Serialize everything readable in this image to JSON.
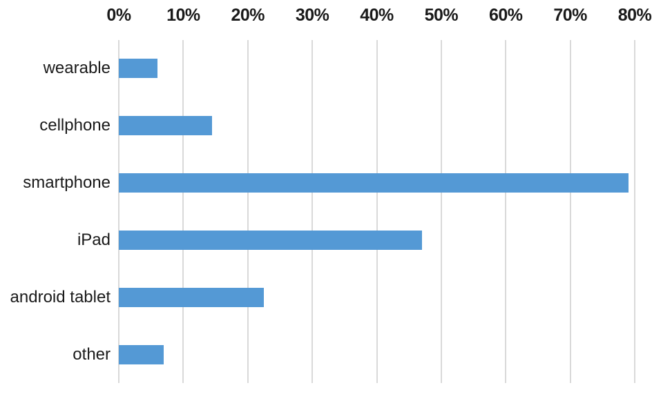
{
  "chart_data": {
    "type": "bar",
    "orientation": "horizontal",
    "title": "",
    "categories": [
      "wearable",
      "cellphone",
      "smartphone",
      "iPad",
      "android tablet",
      "other"
    ],
    "values": [
      6,
      14.5,
      79,
      47,
      22.5,
      7
    ],
    "unit": "%",
    "xlim": [
      0,
      80
    ],
    "tick_values": [
      0,
      10,
      20,
      30,
      40,
      50,
      60,
      70,
      80
    ],
    "tick_labels": [
      "0%",
      "10%",
      "20%",
      "30%",
      "40%",
      "50%",
      "60%",
      "70%",
      "80%"
    ],
    "axis_position": "top",
    "grid": true,
    "legend": false,
    "colors": {
      "bar": "#5499D5",
      "gridline": "#D9D9D9",
      "text": "#1A1A1A",
      "background": "#FFFFFF"
    }
  }
}
